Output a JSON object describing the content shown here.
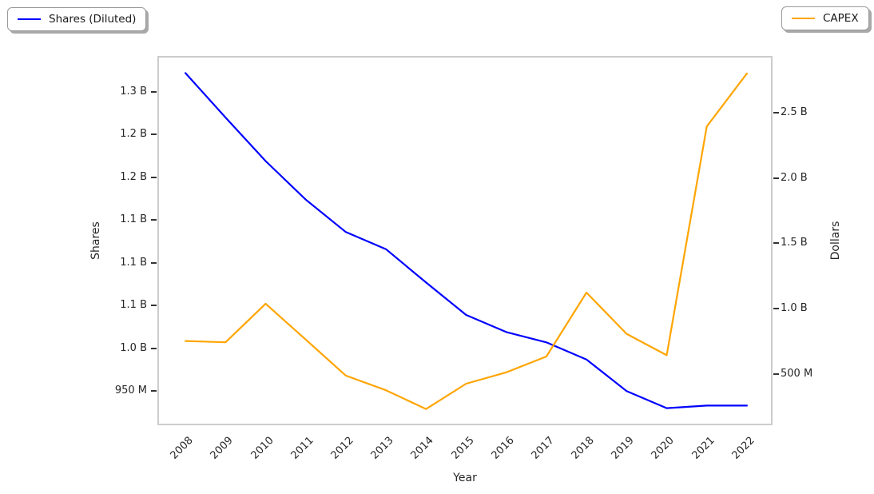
{
  "legends": {
    "shares": {
      "label": "Shares (Diluted)",
      "color": "#0000ff"
    },
    "capex": {
      "label": "CAPEX",
      "color": "#ffa500"
    }
  },
  "axes": {
    "x": {
      "title": "Year",
      "tick_labels": [
        "2008",
        "2009",
        "2010",
        "2011",
        "2012",
        "2013",
        "2014",
        "2015",
        "2016",
        "2017",
        "2018",
        "2019",
        "2020",
        "2021",
        "2022"
      ]
    },
    "left": {
      "title": "Shares",
      "tick_labels": [
        "1.3 B",
        "1.2 B",
        "1.2 B",
        "1.1 B",
        "1.1 B",
        "1.1 B",
        "1.0 B",
        "950 M"
      ],
      "tick_values_millions": [
        1300,
        1250,
        1200,
        1150,
        1100,
        1050,
        1000,
        950
      ],
      "range_millions": [
        910,
        1342
      ]
    },
    "right": {
      "title": "Dollars",
      "tick_labels": [
        "2.5 B",
        "2.0 B",
        "1.5 B",
        "1.0 B",
        "500 M"
      ],
      "tick_values_millions": [
        2500,
        2000,
        1500,
        1000,
        500
      ],
      "range_millions": [
        107,
        2934
      ]
    }
  },
  "chart_data": {
    "type": "line",
    "title": "",
    "grid": false,
    "x": [
      2008,
      2009,
      2010,
      2011,
      2012,
      2013,
      2014,
      2015,
      2016,
      2017,
      2018,
      2019,
      2020,
      2021,
      2022
    ],
    "xlim": [
      2007.3,
      2022.64
    ],
    "xlabel": "Year",
    "series": [
      {
        "name": "Shares (Diluted)",
        "axis": "left",
        "ylabel": "Shares",
        "unit": "millions",
        "color": "#0000ff",
        "legend_position": "top-left",
        "values": [
          1322,
          1270,
          1219,
          1174,
          1136,
          1116,
          1077,
          1039,
          1019,
          1007,
          987,
          950,
          930,
          933,
          933
        ]
      },
      {
        "name": "CAPEX",
        "axis": "right",
        "ylabel": "Dollars",
        "unit": "millions",
        "color": "#ffa500",
        "legend_position": "top-right",
        "values": [
          752,
          742,
          1037,
          763,
          487,
          375,
          231,
          425,
          512,
          633,
          1123,
          807,
          643,
          2394,
          2800
        ]
      }
    ]
  }
}
